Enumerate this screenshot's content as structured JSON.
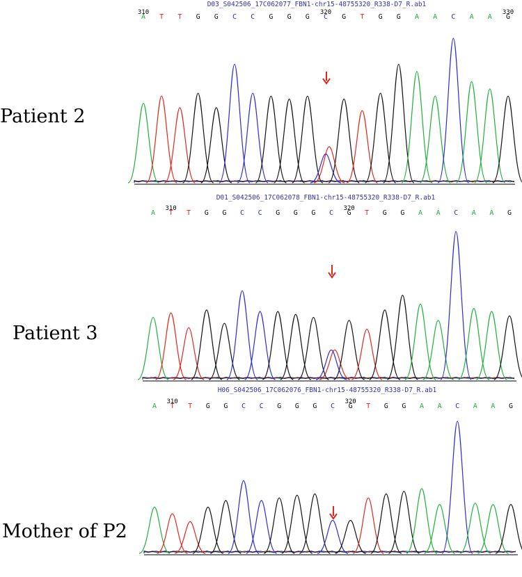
{
  "colors": {
    "A": "#1fb13a",
    "T": "#e3261c",
    "G": "#111111",
    "C": "#2b2bd8",
    "arrow": "#e3261c",
    "title": "#3333aa"
  },
  "chart_data": [
    {
      "type": "chromatogram",
      "sample_label": "Patient 2",
      "file_title": "D03_S042506_17C062077_FBN1-chr15-48755320_R338-D7_R.ab1",
      "bases": [
        "A",
        "T",
        "T",
        "G",
        "G",
        "C",
        "C",
        "G",
        "G",
        "G",
        "C",
        "G",
        "T",
        "G",
        "G",
        "A",
        "A",
        "C",
        "A",
        "A",
        "G"
      ],
      "position_labels": [
        {
          "index": 0,
          "value": "310"
        },
        {
          "index": 10,
          "value": "320"
        },
        {
          "index": 20,
          "value": "330"
        }
      ],
      "variant_index": 10,
      "peak_heights": [
        0.55,
        0.6,
        0.52,
        0.62,
        0.52,
        0.82,
        0.62,
        0.6,
        0.58,
        0.6,
        0.2,
        0.58,
        0.5,
        0.62,
        0.82,
        0.77,
        0.6,
        1.0,
        0.7,
        0.65,
        0.6
      ],
      "secondary_peak_heights": [
        {
          "index": 10,
          "base": "T",
          "value": 0.25
        }
      ]
    },
    {
      "type": "chromatogram",
      "sample_label": "Patient 3",
      "file_title": "D01_S042506_17C062078_FBN1-chr15-48755320_R338-D7_R.ab1",
      "bases": [
        "A",
        "T",
        "T",
        "G",
        "G",
        "C",
        "C",
        "G",
        "G",
        "G",
        "C",
        "G",
        "T",
        "G",
        "G",
        "A",
        "A",
        "C",
        "A",
        "A",
        "G"
      ],
      "position_labels": [
        {
          "index": 1,
          "value": "310"
        },
        {
          "index": 11,
          "value": "320"
        }
      ],
      "variant_index": 10,
      "peak_heights": [
        0.42,
        0.45,
        0.35,
        0.47,
        0.38,
        0.6,
        0.46,
        0.46,
        0.44,
        0.42,
        0.2,
        0.4,
        0.34,
        0.47,
        0.57,
        0.51,
        0.4,
        1.0,
        0.48,
        0.46,
        0.43
      ],
      "secondary_peak_heights": [
        {
          "index": 10,
          "base": "T",
          "value": 0.2
        }
      ]
    },
    {
      "type": "chromatogram",
      "sample_label": "Mother of P2",
      "file_title": "H06_S042506_17C062076_FBN1-chr15-48755320_R338-D7_R.ab1",
      "bases": [
        "A",
        "T",
        "T",
        "G",
        "G",
        "C",
        "C",
        "G",
        "G",
        "G",
        "C",
        "G",
        "T",
        "G",
        "G",
        "A",
        "A",
        "C",
        "A",
        "A",
        "G"
      ],
      "position_labels": [
        {
          "index": 1,
          "value": "310"
        },
        {
          "index": 11,
          "value": "320"
        }
      ],
      "variant_index": 10,
      "peak_heights": [
        0.35,
        0.3,
        0.24,
        0.35,
        0.4,
        0.55,
        0.4,
        0.42,
        0.44,
        0.45,
        0.25,
        0.25,
        0.42,
        0.45,
        0.47,
        0.49,
        0.37,
        1.0,
        0.38,
        0.37,
        0.37
      ],
      "secondary_peak_heights": []
    }
  ]
}
